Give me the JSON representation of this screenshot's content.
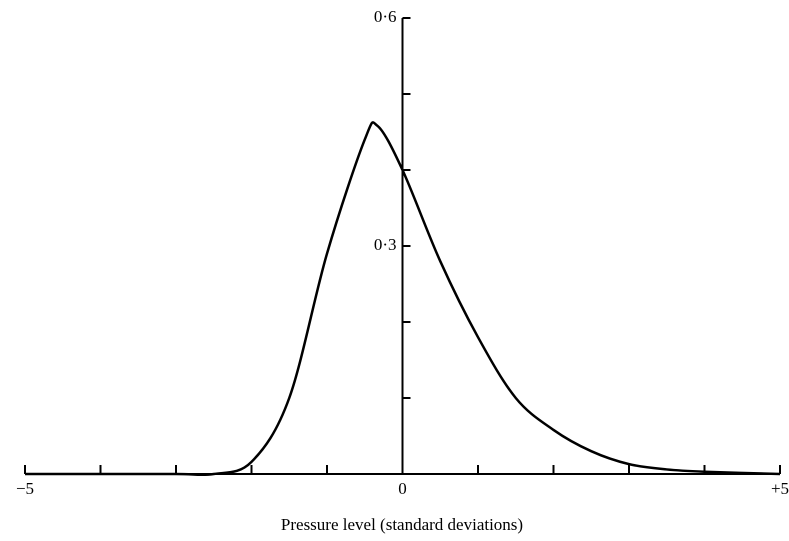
{
  "chart_data": {
    "type": "line",
    "x_label": "Pressure level (standard deviations)",
    "x": [
      -5,
      -4,
      -3,
      -2.5,
      -2,
      -1.5,
      -1,
      -0.5,
      -0.33,
      0,
      0.5,
      1,
      1.5,
      2,
      2.5,
      3,
      3.5,
      4,
      5
    ],
    "series": [
      {
        "color": "#000000",
        "values": [
          0,
          0,
          0,
          0,
          0.016,
          0.1,
          0.29,
          0.44,
          0.458,
          0.4,
          0.28,
          0.18,
          0.1,
          0.058,
          0.03,
          0.013,
          0.006,
          0.003,
          0
        ]
      }
    ],
    "xlim": [
      -5,
      5
    ],
    "ylim": [
      0,
      0.6
    ],
    "xticks": [
      {
        "value": -5,
        "label": "−5"
      },
      0,
      {
        "value": 5,
        "label": "+5"
      }
    ],
    "xminor_ticks": [
      -4,
      -3,
      -2,
      -1,
      1,
      2,
      3,
      4
    ],
    "yticks": [
      {
        "value": 0.3,
        "label": "0·3"
      },
      {
        "value": 0.6,
        "label": "0·6"
      }
    ],
    "yminor_ticks": [
      0.1,
      0.2,
      0.4,
      0.5
    ]
  }
}
